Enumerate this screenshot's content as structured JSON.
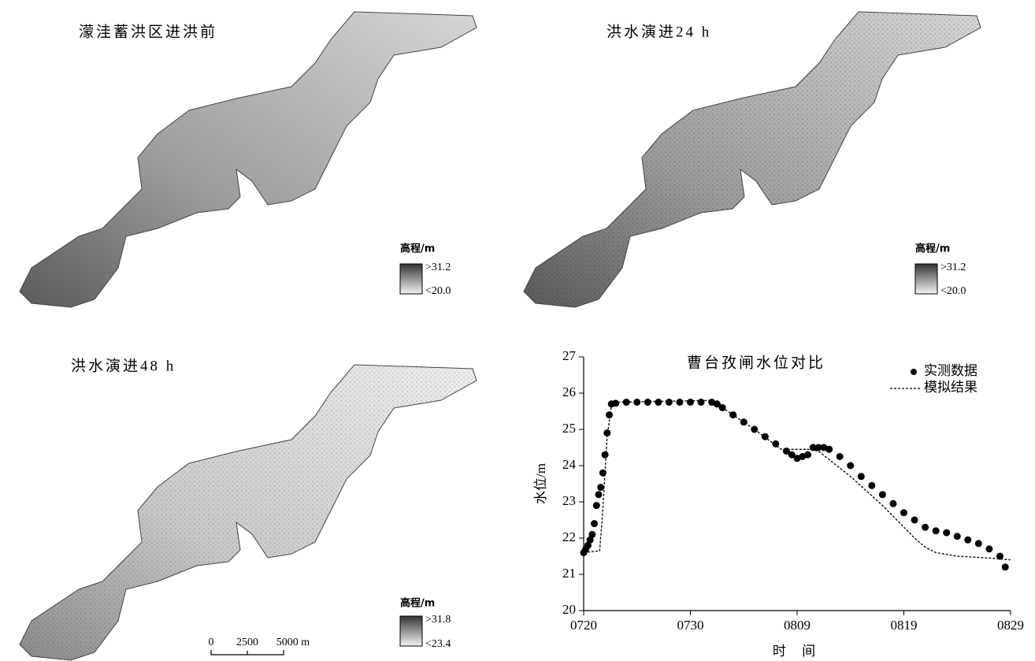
{
  "panels": [
    {
      "title": "濛洼蓄洪区进洪前",
      "legend_title": "高程/m",
      "legend_max": ">31.2",
      "legend_min": "<20.0"
    },
    {
      "title": "洪水演进24 h",
      "legend_title": "高程/m",
      "legend_max": ">31.2",
      "legend_min": "<20.0"
    },
    {
      "title": "洪水演进48 h",
      "legend_title": "高程/m",
      "legend_max": ">31.8",
      "legend_min": "<23.4"
    }
  ],
  "scale_bar": [
    "0",
    "2500",
    "5000 m"
  ],
  "chart_data": {
    "type": "line",
    "title": "曹台孜闸水位对比",
    "x_label": "时 间",
    "y_label": "水位/m",
    "xlim": [
      0,
      40
    ],
    "ylim": [
      20,
      27
    ],
    "xticks": [
      {
        "value": 0,
        "label": "0720"
      },
      {
        "value": 10,
        "label": "0730"
      },
      {
        "value": 20,
        "label": "0809"
      },
      {
        "value": 30,
        "label": "0819"
      },
      {
        "value": 40,
        "label": "0829"
      }
    ],
    "yticks": [
      20,
      21,
      22,
      23,
      24,
      25,
      26,
      27
    ],
    "grid": false,
    "legend": "upper right",
    "series": [
      {
        "name": "实测数据",
        "type": "scatter",
        "color": "#000000",
        "x": [
          0,
          0.2,
          0.4,
          0.6,
          0.8,
          1.0,
          1.2,
          1.4,
          1.6,
          1.8,
          2.0,
          2.2,
          2.4,
          2.6,
          3,
          4,
          5,
          6,
          7,
          8,
          9,
          10,
          11,
          12,
          12.5,
          13,
          14,
          15,
          16,
          17,
          18,
          19,
          19.5,
          20,
          20.5,
          21,
          21.5,
          22,
          22.5,
          23,
          24,
          25,
          26,
          27,
          28,
          29,
          30,
          31,
          32,
          33,
          34,
          35,
          36,
          37,
          38,
          39,
          39.5
        ],
        "values": [
          21.6,
          21.7,
          21.8,
          21.95,
          22.1,
          22.4,
          22.9,
          23.2,
          23.4,
          23.8,
          24.3,
          24.9,
          25.4,
          25.7,
          25.72,
          25.75,
          25.75,
          25.75,
          25.75,
          25.75,
          25.75,
          25.75,
          25.75,
          25.75,
          25.7,
          25.6,
          25.4,
          25.2,
          25.0,
          24.8,
          24.6,
          24.4,
          24.3,
          24.2,
          24.25,
          24.3,
          24.5,
          24.5,
          24.5,
          24.45,
          24.25,
          24.0,
          23.7,
          23.45,
          23.2,
          22.95,
          22.7,
          22.5,
          22.3,
          22.2,
          22.15,
          22.05,
          21.95,
          21.85,
          21.7,
          21.5,
          21.2
        ]
      },
      {
        "name": "模拟结果",
        "type": "line",
        "color": "#000000",
        "dashed": true,
        "x": [
          0,
          1.5,
          1.8,
          2.2,
          2.6,
          3,
          12,
          14,
          16,
          18.5,
          21,
          22,
          25,
          28,
          31,
          32,
          33,
          35,
          38,
          40
        ],
        "values": [
          21.6,
          21.65,
          22.8,
          24.8,
          25.65,
          25.75,
          25.8,
          25.4,
          25.0,
          24.45,
          24.45,
          24.4,
          23.7,
          22.9,
          22.0,
          21.75,
          21.6,
          21.5,
          21.45,
          21.4
        ]
      }
    ]
  }
}
